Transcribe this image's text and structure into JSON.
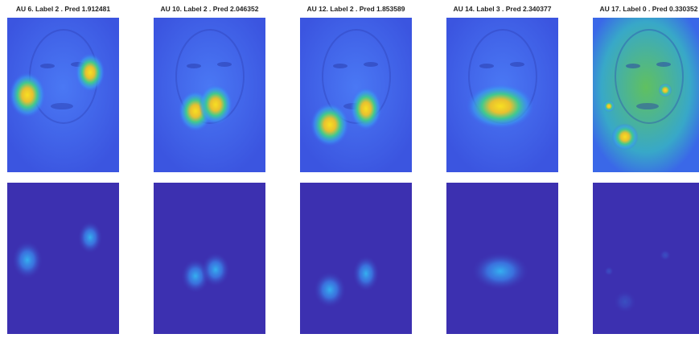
{
  "panels": [
    {
      "title": "AU 6. Label 2 . Pred 1.912481"
    },
    {
      "title": "AU 10. Label 2 . Pred 2.046352"
    },
    {
      "title": "AU 12. Label 2 . Pred 1.853589"
    },
    {
      "title": "AU 14. Label 3 . Pred 2.340377"
    },
    {
      "title": "AU 17. Label 0 . Pred 0.330352"
    }
  ]
}
